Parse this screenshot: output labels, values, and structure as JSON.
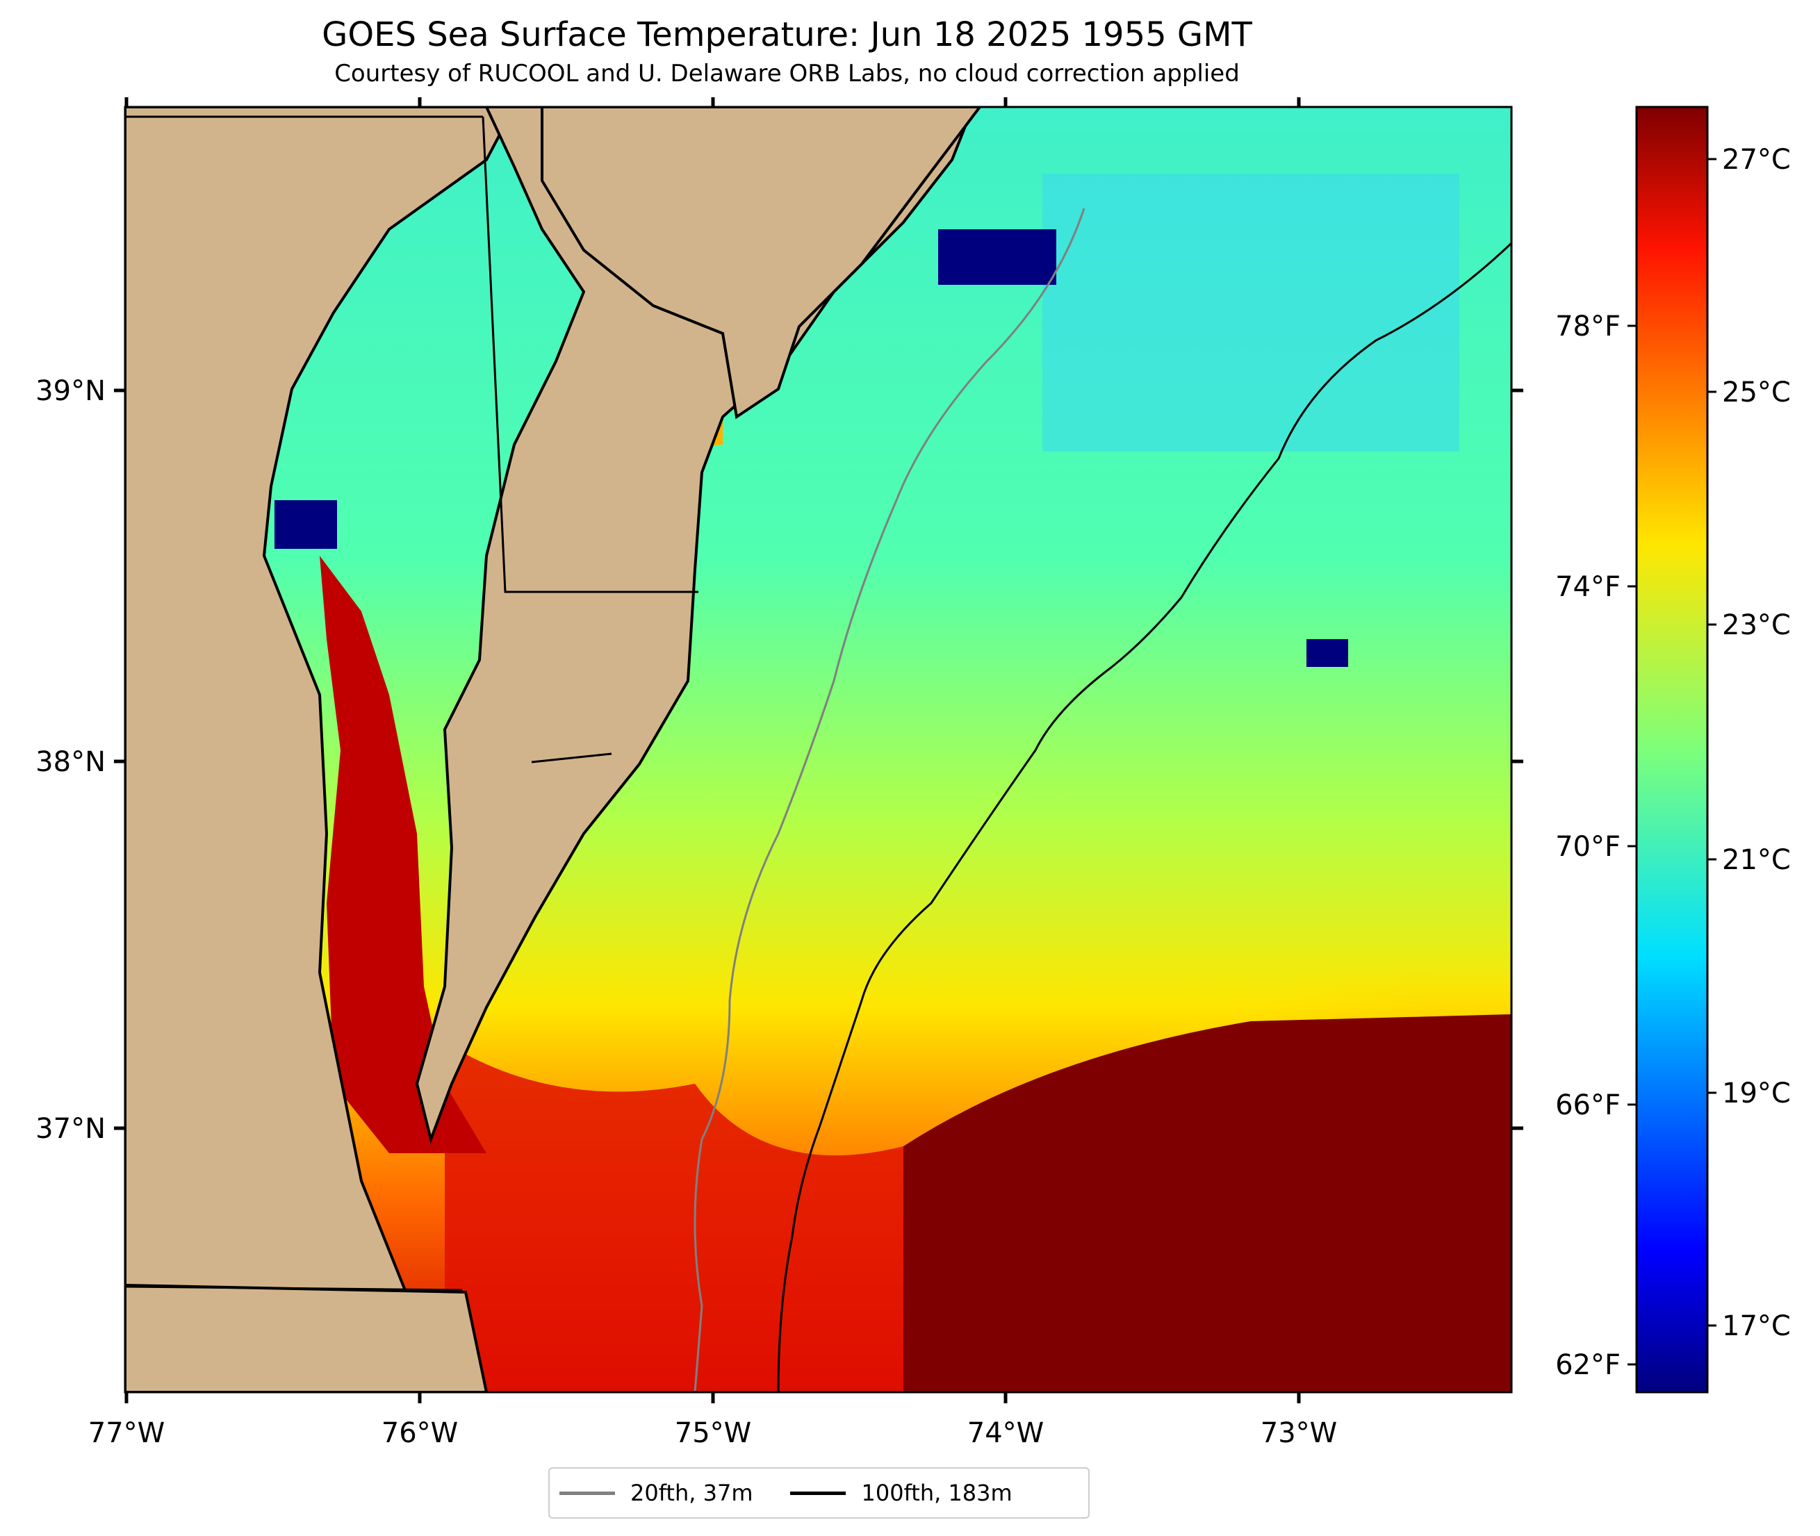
{
  "title": "GOES Sea Surface Temperature: Jun 18 2025 1955 GMT",
  "subtitle": "Courtesy of RUCOOL and U. Delaware ORB Labs, no cloud correction applied",
  "map": {
    "land_color": "#D2B48C",
    "lon_labels": [
      "77°W",
      "76°W",
      "75°W",
      "74°W",
      "73°W"
    ],
    "lat_labels": [
      "39°N",
      "38°N",
      "37°N"
    ]
  },
  "colorbar": {
    "colormap": "jet",
    "celsius_labels": [
      "27°C",
      "25°C",
      "23°C",
      "21°C",
      "19°C",
      "17°C"
    ],
    "fahrenheit_labels": [
      "78°F",
      "74°F",
      "70°F",
      "66°F",
      "62°F"
    ]
  },
  "legend": {
    "items": [
      {
        "label": "20fth, 37m",
        "color": "#808080"
      },
      {
        "label": "100fth, 183m",
        "color": "#000000"
      }
    ]
  }
}
